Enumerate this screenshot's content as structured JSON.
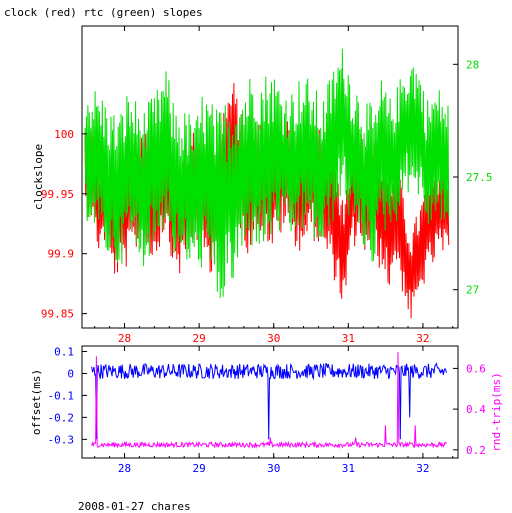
{
  "title": "clock (red) rtc (green) slopes",
  "footer": "2008-01-27 chares",
  "colors": {
    "clock": "#ff0000",
    "rtc": "#00e000",
    "offset": "#0000ff",
    "rndtrip": "#ff00ff",
    "axis": "#000000",
    "bg": "#ffffff"
  },
  "chart_data": [
    {
      "type": "line",
      "title": "clock (red) rtc (green) slopes",
      "xlabel": "",
      "xlim": [
        27.43,
        32.47
      ],
      "xticks": [
        28,
        29,
        30,
        31,
        32
      ],
      "xtick_labels": [
        "28",
        "29",
        "30",
        "31",
        "32"
      ],
      "left_axis": {
        "label": "clockslope",
        "lim": [
          99.838,
          100.09
        ],
        "ticks": [
          99.85,
          99.9,
          99.95,
          100
        ],
        "tick_labels": [
          "99.85",
          "99.9",
          "99.95",
          "100"
        ],
        "color": "#ff0000"
      },
      "right_axis": {
        "label": "",
        "lim": [
          26.83,
          28.17
        ],
        "ticks": [
          27,
          27.5,
          28
        ],
        "tick_labels": [
          "27",
          "27.5",
          "28"
        ],
        "color": "#00e000"
      },
      "series": [
        {
          "name": "clock",
          "axis": "left",
          "color": "#ff0000",
          "x": [
            27.55,
            27.65,
            27.75,
            27.85,
            27.95,
            28.05,
            28.15,
            28.25,
            28.35,
            28.45,
            28.55,
            28.65,
            28.75,
            28.85,
            28.95,
            29.05,
            29.15,
            29.25,
            29.35,
            29.45,
            29.55,
            29.65,
            29.75,
            29.85,
            29.95,
            30.05,
            30.15,
            30.25,
            30.35,
            30.45,
            30.55,
            30.65,
            30.75,
            30.85,
            30.95,
            31.05,
            31.15,
            31.25,
            31.35,
            31.45,
            31.55,
            31.65,
            31.75,
            31.85,
            31.95,
            32.05,
            32.15,
            32.25,
            32.32
          ],
          "y": [
            99.97,
            99.94,
            99.95,
            99.92,
            99.93,
            99.94,
            99.95,
            99.96,
            99.94,
            99.95,
            99.97,
            99.94,
            99.93,
            99.95,
            99.96,
            99.95,
            99.93,
            99.96,
            99.97,
            99.99,
            99.97,
            99.95,
            99.96,
            99.97,
            99.95,
            99.96,
            99.97,
            99.96,
            99.95,
            99.96,
            99.96,
            99.95,
            99.94,
            99.92,
            99.9,
            99.95,
            99.96,
            99.94,
            99.95,
            99.93,
            99.92,
            99.94,
            99.9,
            99.88,
            99.9,
            99.92,
            99.93,
            99.94,
            99.93
          ],
          "band": [
            0.04,
            0.04,
            0.04,
            0.04,
            0.05,
            0.05,
            0.05,
            0.05,
            0.05,
            0.05,
            0.05,
            0.05,
            0.05,
            0.05,
            0.05,
            0.05,
            0.05,
            0.05,
            0.06,
            0.06,
            0.05,
            0.05,
            0.05,
            0.05,
            0.05,
            0.05,
            0.05,
            0.05,
            0.05,
            0.05,
            0.05,
            0.05,
            0.05,
            0.05,
            0.05,
            0.05,
            0.05,
            0.05,
            0.05,
            0.05,
            0.05,
            0.05,
            0.04,
            0.04,
            0.04,
            0.04,
            0.04,
            0.04,
            0.04
          ]
        },
        {
          "name": "rtc",
          "axis": "right",
          "color": "#00e000",
          "x": [
            27.55,
            27.65,
            27.75,
            27.85,
            27.95,
            28.05,
            28.15,
            28.25,
            28.35,
            28.45,
            28.55,
            28.65,
            28.75,
            28.85,
            28.95,
            29.05,
            29.15,
            29.25,
            29.35,
            29.45,
            29.55,
            29.65,
            29.75,
            29.85,
            29.95,
            30.05,
            30.15,
            30.25,
            30.35,
            30.45,
            30.55,
            30.65,
            30.75,
            30.85,
            30.95,
            31.05,
            31.15,
            31.25,
            31.35,
            31.45,
            31.55,
            31.65,
            31.75,
            31.85,
            31.95,
            32.05,
            32.15,
            32.25,
            32.32
          ],
          "y": [
            27.6,
            27.55,
            27.5,
            27.45,
            27.45,
            27.55,
            27.5,
            27.45,
            27.5,
            27.55,
            27.65,
            27.5,
            27.45,
            27.45,
            27.4,
            27.5,
            27.45,
            27.35,
            27.4,
            27.45,
            27.5,
            27.55,
            27.6,
            27.55,
            27.6,
            27.6,
            27.55,
            27.55,
            27.6,
            27.6,
            27.55,
            27.5,
            27.6,
            27.7,
            27.75,
            27.6,
            27.55,
            27.5,
            27.45,
            27.6,
            27.55,
            27.6,
            27.7,
            27.75,
            27.7,
            27.55,
            27.6,
            27.6,
            27.55
          ],
          "band": [
            0.3,
            0.35,
            0.35,
            0.35,
            0.35,
            0.35,
            0.35,
            0.35,
            0.35,
            0.35,
            0.35,
            0.35,
            0.35,
            0.35,
            0.35,
            0.4,
            0.4,
            0.45,
            0.45,
            0.45,
            0.4,
            0.4,
            0.4,
            0.4,
            0.4,
            0.35,
            0.35,
            0.35,
            0.35,
            0.35,
            0.35,
            0.35,
            0.35,
            0.35,
            0.35,
            0.35,
            0.35,
            0.35,
            0.35,
            0.35,
            0.3,
            0.3,
            0.3,
            0.3,
            0.3,
            0.3,
            0.3,
            0.3,
            0.3
          ]
        }
      ]
    },
    {
      "type": "line",
      "xlim": [
        27.43,
        32.47
      ],
      "xticks": [
        28,
        29,
        30,
        31,
        32
      ],
      "xtick_labels": [
        "28",
        "29",
        "30",
        "31",
        "32"
      ],
      "left_axis": {
        "label": "offset(ms)",
        "lim": [
          -0.385,
          0.125
        ],
        "ticks": [
          -0.3,
          -0.2,
          -0.1,
          0,
          0.1
        ],
        "tick_labels": [
          "-0.3",
          "-0.2",
          "-0.1",
          "0",
          "0.1"
        ],
        "color": "#0000ff"
      },
      "right_axis": {
        "label": "rnd-trip(ms)",
        "lim": [
          0.16,
          0.71
        ],
        "ticks": [
          0.2,
          0.4,
          0.6
        ],
        "tick_labels": [
          "0.2",
          "0.4",
          "0.6"
        ],
        "color": "#ff00ff"
      },
      "series": [
        {
          "name": "offset",
          "axis": "left",
          "color": "#0000ff",
          "baseline": 0.01,
          "noise": 0.035,
          "spikes": [
            [
              27.62,
              -0.3
            ],
            [
              29.93,
              -0.3
            ],
            [
              31.82,
              -0.2
            ],
            [
              31.7,
              -0.3
            ]
          ]
        },
        {
          "name": "rnd-trip",
          "axis": "right",
          "color": "#ff00ff",
          "baseline": 0.225,
          "noise": 0.012,
          "spikes": [
            [
              27.62,
              0.66
            ],
            [
              31.5,
              0.32
            ],
            [
              31.67,
              0.68
            ],
            [
              31.9,
              0.32
            ],
            [
              29.95,
              0.26
            ],
            [
              31.1,
              0.26
            ]
          ]
        }
      ]
    }
  ]
}
